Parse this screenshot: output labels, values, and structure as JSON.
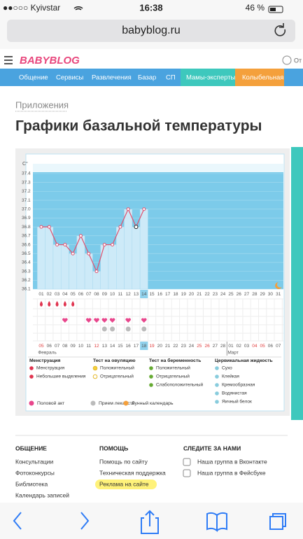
{
  "status_bar": {
    "carrier": "●●○○○ Kyivstar",
    "time": "16:38",
    "battery": "46 %"
  },
  "address_bar": {
    "url": "babyblog.ru"
  },
  "header": {
    "logo": "BABYBLOG",
    "cut_text": "От"
  },
  "nav": [
    "Общение",
    "Сервисы",
    "Развлечения",
    "Базар",
    "СП",
    "Мамы-эксперты",
    "Колыбельная"
  ],
  "breadcrumb": "Приложения",
  "title": "Графики базальной температуры",
  "chart_data": {
    "type": "line",
    "y_unit": "C°",
    "color": "#e0506e",
    "categories": [
      "01",
      "02",
      "03",
      "04",
      "05",
      "06",
      "07",
      "08",
      "09",
      "10",
      "11",
      "12",
      "13",
      "14",
      "15",
      "16",
      "17",
      "18",
      "19",
      "20",
      "21",
      "22",
      "23",
      "24",
      "25",
      "26",
      "27",
      "28",
      "29",
      "30",
      "31"
    ],
    "values": [
      36.8,
      36.8,
      36.6,
      36.6,
      36.5,
      36.7,
      36.5,
      36.3,
      36.6,
      36.6,
      36.8,
      37.0,
      36.8,
      37.0,
      null,
      null,
      null,
      null,
      null,
      null,
      null,
      null,
      null,
      null,
      null,
      null,
      null,
      null,
      null,
      null,
      null
    ],
    "highlight_category": "14",
    "ylim": [
      36.1,
      37.4
    ],
    "yticks": [
      36.1,
      36.2,
      36.3,
      36.4,
      36.5,
      36.6,
      36.7,
      36.8,
      36.9,
      {
        "value": 37.0,
        "label": "37.0"
      },
      37.1,
      37.2,
      37.3,
      37.4
    ],
    "grid": true,
    "markers": {
      "menstruation": [
        "01",
        "02",
        "03",
        "04",
        "05"
      ],
      "intercourse": [
        "04",
        "07",
        "08",
        "09",
        "10",
        "12",
        "14"
      ],
      "medication": [
        "09",
        "10",
        "12",
        "14"
      ]
    },
    "dates": [
      {
        "text": "05",
        "weekend": true
      },
      {
        "text": "06",
        "weekend": false
      },
      {
        "text": "07",
        "weekend": false
      },
      {
        "text": "08",
        "weekend": false
      },
      {
        "text": "09",
        "weekend": false
      },
      {
        "text": "10",
        "weekend": false
      },
      {
        "text": "11",
        "weekend": false
      },
      {
        "text": "12",
        "weekend": true
      },
      {
        "text": "13",
        "weekend": false
      },
      {
        "text": "14",
        "weekend": false
      },
      {
        "text": "15",
        "weekend": false
      },
      {
        "text": "16",
        "weekend": false
      },
      {
        "text": "17",
        "weekend": false
      },
      {
        "text": "18",
        "weekend": false,
        "selected": true
      },
      {
        "text": "19",
        "weekend": true
      },
      {
        "text": "20",
        "weekend": false
      },
      {
        "text": "21",
        "weekend": false
      },
      {
        "text": "22",
        "weekend": false
      },
      {
        "text": "23",
        "weekend": false
      },
      {
        "text": "24",
        "weekend": false
      },
      {
        "text": "25",
        "weekend": true
      },
      {
        "text": "26",
        "weekend": true
      },
      {
        "text": "27",
        "weekend": false
      },
      {
        "text": "28",
        "weekend": false
      },
      {
        "text": "01",
        "weekend": false
      },
      {
        "text": "02",
        "weekend": false
      },
      {
        "text": "03",
        "weekend": false
      },
      {
        "text": "04",
        "weekend": true
      },
      {
        "text": "05",
        "weekend": true
      },
      {
        "text": "06",
        "weekend": false
      },
      {
        "text": "07",
        "weekend": false
      }
    ],
    "months": [
      "Февраль",
      "Март"
    ],
    "legend": [
      {
        "title": "Менструация",
        "items": [
          "Менструация",
          "Небольшие выделения"
        ]
      },
      {
        "title": "Тест на овуляцию",
        "items": [
          "Положительный",
          "Отрицательный"
        ]
      },
      {
        "title": "Тест на беременность",
        "items": [
          "Положительный",
          "Отрицательный",
          "Слабоположительный"
        ]
      },
      {
        "title": "Цервикальная жидкость",
        "items": [
          "Сухо",
          "Клейкая",
          "Кремообразная",
          "Водянистая",
          "Яичный белок"
        ]
      }
    ],
    "legend_bottom": [
      "Половой акт",
      "Прием лекарств",
      "Лунный календарь"
    ]
  },
  "footer": [
    {
      "title": "ОБЩЕНИЕ",
      "links": [
        "Консультации",
        "Фотоконкурсы",
        "Библиотека",
        "Календарь записей"
      ]
    },
    {
      "title": "ПОМОЩЬ",
      "links": [
        "Помощь по сайту",
        "Техническая поддержка",
        "Реклама на сайте"
      ]
    },
    {
      "title": "СЛЕДИТЕ ЗА НАМИ",
      "links": [
        "Наша группа в Вконтакте",
        "Наша группа в Фейсбуке"
      ]
    }
  ]
}
